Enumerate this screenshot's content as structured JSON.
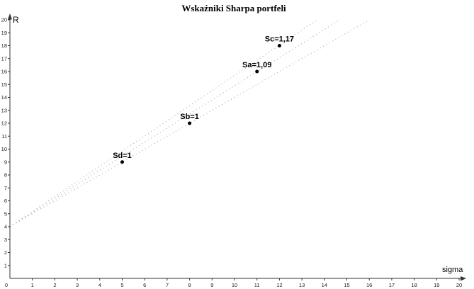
{
  "chart_data": {
    "type": "scatter",
    "title": "Wskaźniki Sharpa portfeli",
    "xlabel": "sigma",
    "ylabel": "R",
    "xlim": [
      0,
      20
    ],
    "ylim": [
      0,
      20
    ],
    "grid": false,
    "legend": false,
    "origin_label": "0",
    "x_ticks": [
      1,
      2,
      3,
      4,
      5,
      6,
      7,
      8,
      9,
      10,
      11,
      12,
      13,
      14,
      15,
      16,
      17,
      18,
      19,
      20
    ],
    "y_ticks": [
      1,
      2,
      3,
      4,
      5,
      6,
      7,
      8,
      9,
      10,
      11,
      12,
      13,
      14,
      15,
      16,
      17,
      18,
      19,
      20
    ],
    "points": [
      {
        "label": "Sd=1",
        "sharpe": 1.0,
        "x": 5,
        "y": 9
      },
      {
        "label": "Sb=1",
        "sharpe": 1.0,
        "x": 8,
        "y": 12
      },
      {
        "label": "Sa=1,09",
        "sharpe": 1.09,
        "x": 11,
        "y": 16
      },
      {
        "label": "Sc=1,17",
        "sharpe": 1.17,
        "x": 12,
        "y": 18
      }
    ],
    "lines": [
      {
        "name": "sharpe-line-1.17",
        "intercept": 4,
        "slope": 1.17,
        "style": "dotted"
      },
      {
        "name": "sharpe-line-1.09",
        "intercept": 4,
        "slope": 1.09,
        "style": "dotted"
      },
      {
        "name": "sharpe-line-1.00",
        "intercept": 4,
        "slope": 1.0,
        "style": "dotted"
      }
    ],
    "colors": {
      "background": "#ffffff",
      "point": "#000000",
      "line": "#b6b0a8",
      "axis": "#333333",
      "text": "#000000"
    }
  }
}
